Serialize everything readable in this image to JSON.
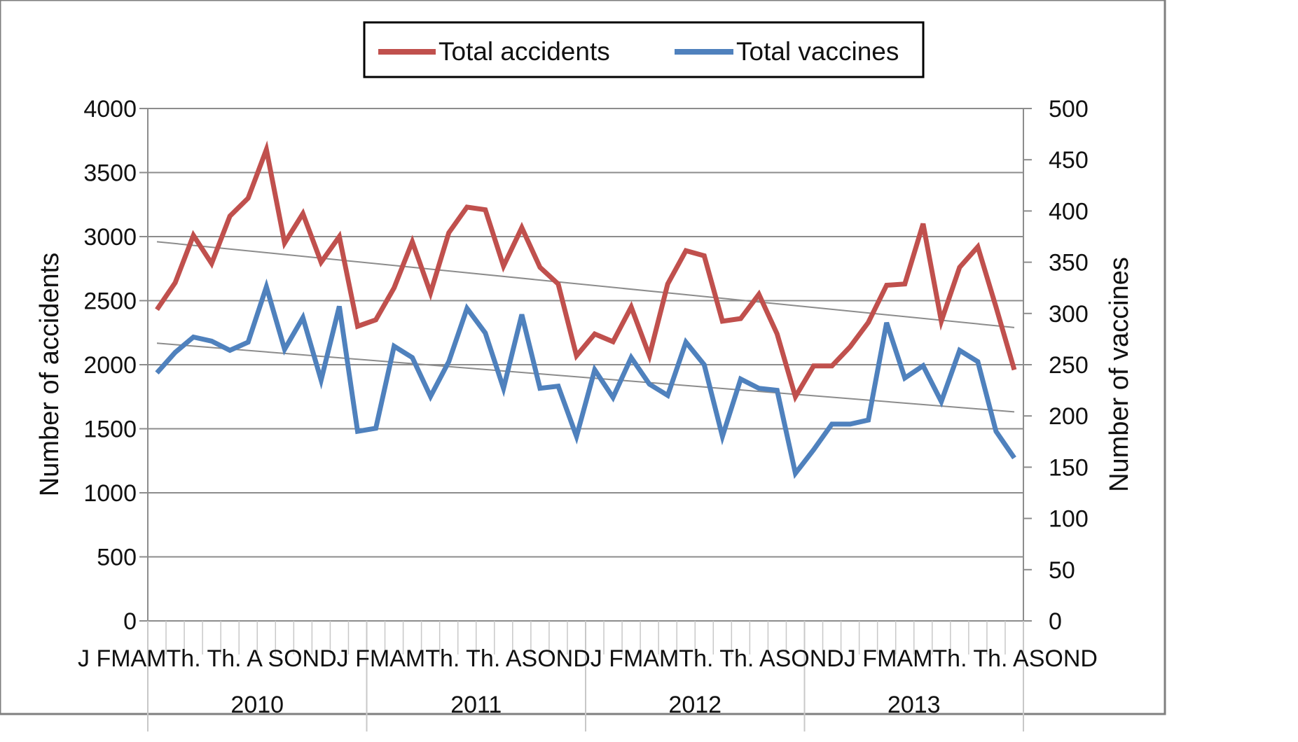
{
  "chart_data": {
    "type": "line",
    "xlabel": "",
    "ylabel": "Number of accidents",
    "y2label": "Number of vaccines",
    "ylim": [
      0,
      4000
    ],
    "y2lim": [
      0,
      500
    ],
    "yticks": [
      0,
      500,
      1000,
      1500,
      2000,
      2500,
      3000,
      3500,
      4000
    ],
    "y2ticks": [
      0,
      50,
      100,
      150,
      200,
      250,
      300,
      350,
      400,
      450,
      500
    ],
    "grid": true,
    "legend_position": "top-center",
    "month_labels": [
      "J FMAMTh. Th. A SONDJ FMAMTh. Th. ASONDJ FMAMTh. Th. ASONDJ FMAMTh. Th. ASOND"
    ],
    "years": [
      "2010",
      "2011",
      "2012",
      "2013"
    ],
    "series": [
      {
        "name": "Total accidents",
        "axis": "left",
        "color": "#c0504d",
        "values": [
          2430,
          2640,
          3010,
          2790,
          3160,
          3300,
          3680,
          2950,
          3180,
          2800,
          3000,
          2300,
          2350,
          2600,
          2960,
          2560,
          3030,
          3230,
          3210,
          2770,
          3070,
          2760,
          2630,
          2070,
          2240,
          2180,
          2450,
          2070,
          2630,
          2890,
          2850,
          2340,
          2360,
          2550,
          2240,
          1750,
          1990,
          1990,
          2140,
          2330,
          2620,
          2630,
          3100,
          2340,
          2760,
          2920,
          2450,
          1960
        ]
      },
      {
        "name": "Total vaccines",
        "axis": "right",
        "color": "#4f81bd",
        "values": [
          242,
          262,
          277,
          273,
          264,
          272,
          326,
          265,
          296,
          235,
          307,
          185,
          188,
          268,
          257,
          219,
          253,
          305,
          281,
          227,
          299,
          227,
          229,
          180,
          245,
          218,
          257,
          231,
          220,
          272,
          250,
          180,
          236,
          227,
          225,
          144,
          167,
          192,
          192,
          196,
          291,
          237,
          249,
          214,
          264,
          253,
          185,
          159
        ]
      }
    ],
    "trendlines": [
      {
        "series": "Total accidents",
        "axis": "left",
        "start": 2960,
        "end": 2290
      },
      {
        "series": "Total vaccines",
        "axis": "right",
        "start": 271,
        "end": 204
      }
    ]
  }
}
